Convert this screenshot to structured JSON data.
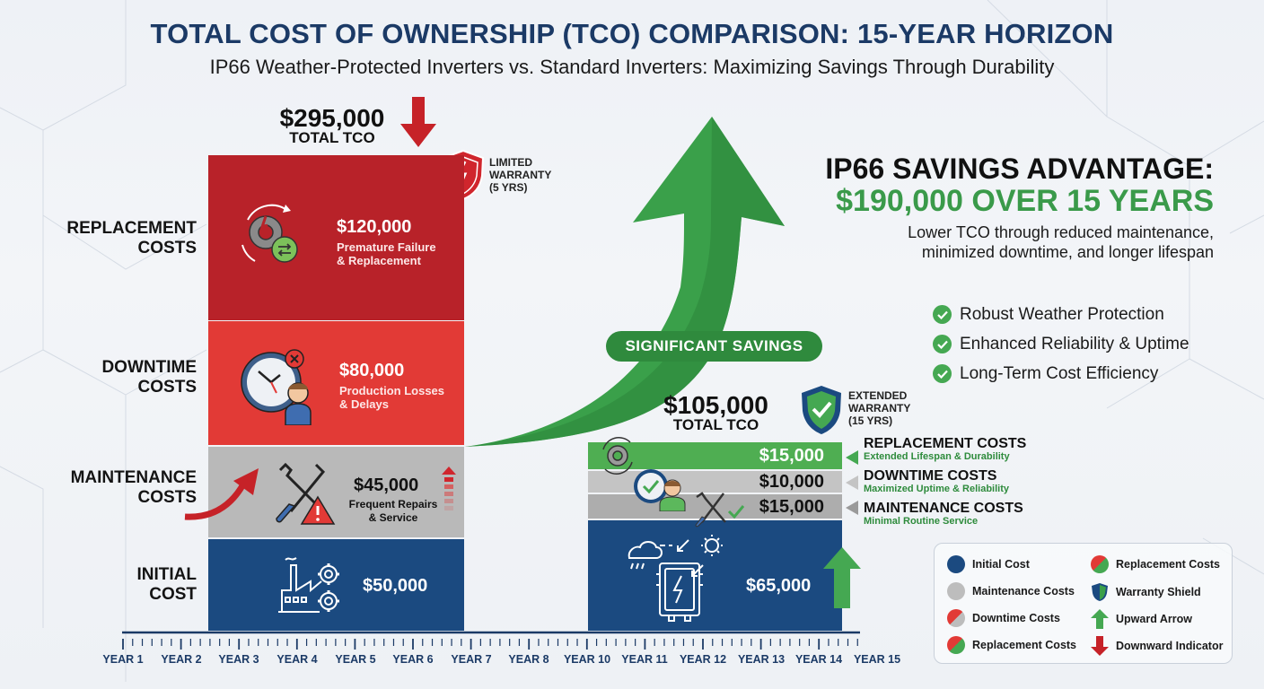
{
  "header": {
    "title": "TOTAL COST OF OWNERSHIP (TCO) COMPARISON: 15-YEAR HORIZON",
    "subtitle": "IP66 Weather-Protected Inverters vs. Standard Inverters: Maximizing Savings Through Durability"
  },
  "colors": {
    "navy": "#1b4a80",
    "replacement_red": "#b82229",
    "downtime_red": "#e23a36",
    "maintenance_gray": "#b9b9b9",
    "green": "#45a852",
    "dark_green": "#2f8a3d",
    "title_navy": "#1b3a66"
  },
  "y_labels": {
    "replacement": [
      "REPLACEMENT",
      "COSTS"
    ],
    "downtime": [
      "DOWNTIME",
      "COSTS"
    ],
    "maintenance": [
      "MAINTENANCE",
      "COSTS"
    ],
    "initial": [
      "INITIAL",
      "COST"
    ]
  },
  "standard": {
    "total_value": "$295,000",
    "total_label": "TOTAL TCO",
    "warranty": [
      "LIMITED",
      "WARRANTY",
      "(5 YRS)"
    ],
    "segments": {
      "replacement": {
        "value": "$120,000",
        "desc1": "Premature Failure",
        "desc2": "& Replacement"
      },
      "downtime": {
        "value": "$80,000",
        "desc1": "Production Losses",
        "desc2": "& Delays"
      },
      "maintenance": {
        "value": "$45,000",
        "desc1": "Frequent Repairs",
        "desc2": "& Service"
      },
      "initial": {
        "value": "$50,000"
      }
    }
  },
  "ip66": {
    "total_value": "$105,000",
    "total_label": "TOTAL TCO",
    "warranty": [
      "EXTENDED",
      "WARRANTY",
      "(15 YRS)"
    ],
    "segments": {
      "replacement": {
        "value": "$15,000",
        "title": "REPLACEMENT COSTS",
        "sub": "Extended Lifespan & Durability"
      },
      "downtime": {
        "value": "$10,000",
        "title": "DOWNTIME COSTS",
        "sub": "Maximized Uptime & Reliability"
      },
      "maintenance": {
        "value": "$15,000",
        "title": "MAINTENANCE COSTS",
        "sub": "Minimal Routine Service"
      },
      "initial": {
        "value": "$65,000"
      }
    }
  },
  "savings": {
    "pill": "SIGNIFICANT SAVINGS",
    "title": "IP66 SAVINGS ADVANTAGE:",
    "amount": "$190,000 OVER 15 YEARS",
    "desc1": "Lower TCO through reduced maintenance,",
    "desc2": "minimized downtime, and longer lifespan",
    "bullets": [
      "Robust Weather Protection",
      "Enhanced Reliability & Uptime",
      "Long-Term Cost Efficiency"
    ]
  },
  "legend": {
    "items": [
      "Initial Cost",
      "Maintenance Costs",
      "Downtime Costs",
      "Replacement Costs",
      "Replacement Costs",
      "Warranty Shield",
      "Upward Arrow",
      "Downward Indicator"
    ]
  },
  "timeline": {
    "years": [
      "YEAR 1",
      "YEAR 2",
      "YEAR 3",
      "YEAR 4",
      "YEAR 5",
      "YEAR 6",
      "YEAR 7",
      "YEAR 8",
      "YEAR 10",
      "YEAR 11",
      "YEAR 12",
      "YEAR 13",
      "YEAR 14",
      "YEAR 15"
    ]
  },
  "chart_data": {
    "type": "bar",
    "stacked": true,
    "title": "TOTAL COST OF OWNERSHIP (TCO) COMPARISON: 15-YEAR HORIZON",
    "subtitle": "IP66 Weather-Protected Inverters vs. Standard Inverters: Maximizing Savings Through Durability",
    "categories": [
      "Standard Inverters",
      "IP66 Weather-Protected Inverters"
    ],
    "series": [
      {
        "name": "Initial Cost",
        "values": [
          50000,
          65000
        ],
        "color": "#1b4a80"
      },
      {
        "name": "Maintenance Costs",
        "values": [
          45000,
          15000
        ],
        "color": "#b9b9b9"
      },
      {
        "name": "Downtime Costs",
        "values": [
          80000,
          10000
        ],
        "color": "#e23a36"
      },
      {
        "name": "Replacement Costs",
        "values": [
          120000,
          15000
        ],
        "color": "#b82229"
      }
    ],
    "totals": [
      295000,
      105000
    ],
    "savings": 190000,
    "xlabel": "15-Year Horizon",
    "x_ticks": [
      "YEAR 1",
      "YEAR 2",
      "YEAR 3",
      "YEAR 4",
      "YEAR 5",
      "YEAR 6",
      "YEAR 7",
      "YEAR 8",
      "YEAR 10",
      "YEAR 11",
      "YEAR 12",
      "YEAR 13",
      "YEAR 14",
      "YEAR 15"
    ],
    "ylabel": "",
    "annotations": [
      "LIMITED WARRANTY (5 YRS)",
      "EXTENDED WARRANTY (15 YRS)",
      "SIGNIFICANT SAVINGS",
      "IP66 SAVINGS ADVANTAGE: $190,000 OVER 15 YEARS"
    ],
    "legend_position": "bottom-right",
    "grid": false
  }
}
